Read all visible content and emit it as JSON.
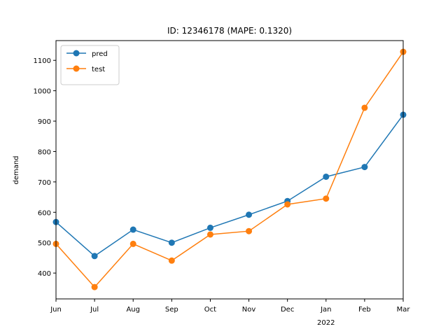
{
  "chart_data": {
    "type": "line",
    "title": "ID: 12346178 (MAPE: 0.1320)",
    "xlabel": "",
    "ylabel": "demand",
    "categories": [
      "Jun",
      "Jul",
      "Aug",
      "Sep",
      "Oct",
      "Nov",
      "Dec",
      "Jan",
      "Feb",
      "Mar"
    ],
    "year_label": "2022",
    "ylim": [
      315,
      1165
    ],
    "yticks": [
      400,
      500,
      600,
      700,
      800,
      900,
      1000,
      1100
    ],
    "grid": false,
    "legend_position": "top-left",
    "series": [
      {
        "name": "pred",
        "color": "#1f77b4",
        "values": [
          568,
          456,
          543,
          500,
          549,
          592,
          637,
          717,
          749,
          921
        ]
      },
      {
        "name": "test",
        "color": "#ff7f0e",
        "values": [
          496,
          354,
          496,
          441,
          527,
          538,
          626,
          645,
          944,
          1128
        ]
      }
    ]
  }
}
